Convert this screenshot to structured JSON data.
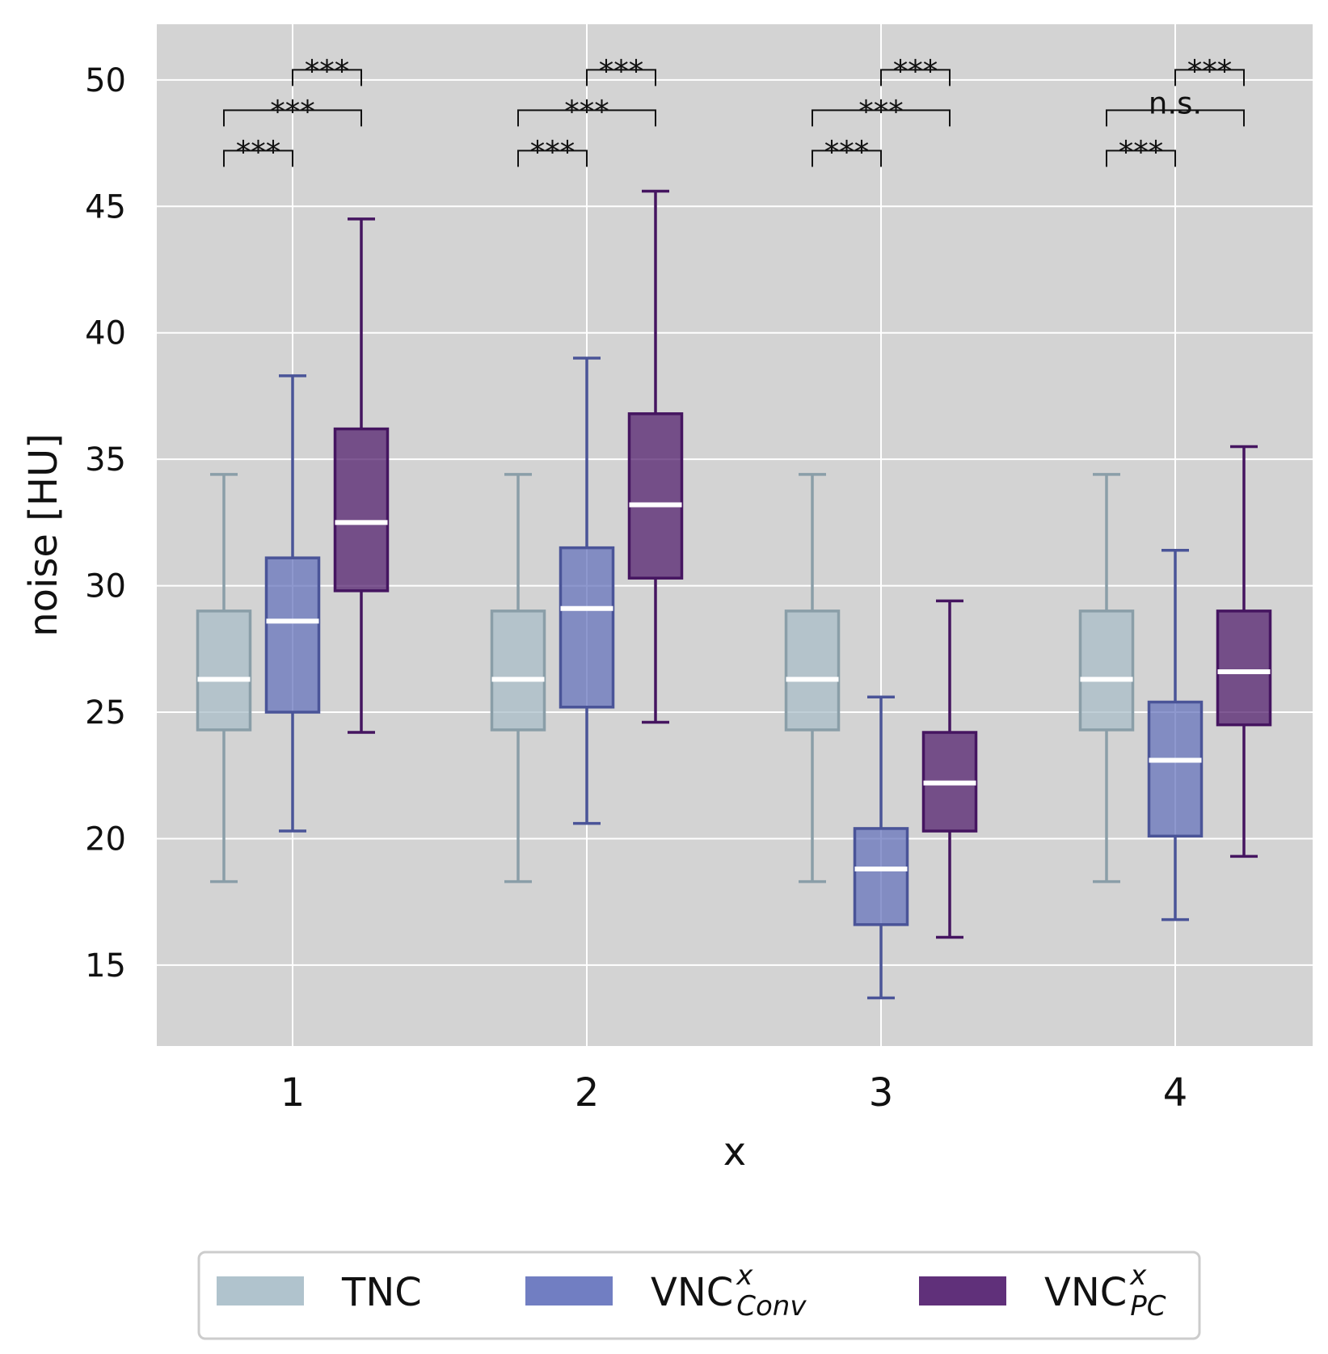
{
  "chart_data": {
    "type": "box",
    "xlabel": "x",
    "ylabel": "noise [HU]",
    "ylim": [
      11.8,
      52.2
    ],
    "yticks": [
      15,
      20,
      25,
      30,
      35,
      40,
      45,
      50
    ],
    "categories": [
      "1",
      "2",
      "3",
      "4"
    ],
    "grid": true,
    "series": [
      {
        "name": "TNC",
        "legend_label": "TNC",
        "legend_sup": "",
        "legend_sub": "",
        "color": "#a7bcc8",
        "edge_color": "#8a9ea8",
        "boxes": [
          {
            "category": "1",
            "whislo": 18.3,
            "q1": 24.3,
            "med": 26.3,
            "q3": 29.0,
            "whishi": 34.4
          },
          {
            "category": "2",
            "whislo": 18.3,
            "q1": 24.3,
            "med": 26.3,
            "q3": 29.0,
            "whishi": 34.4
          },
          {
            "category": "3",
            "whislo": 18.3,
            "q1": 24.3,
            "med": 26.3,
            "q3": 29.0,
            "whishi": 34.4
          },
          {
            "category": "4",
            "whislo": 18.3,
            "q1": 24.3,
            "med": 26.3,
            "q3": 29.0,
            "whishi": 34.4
          }
        ]
      },
      {
        "name": "VNC Conv",
        "legend_label": "VNC",
        "legend_sup": "x",
        "legend_sub": "Conv",
        "color": "#6270bb",
        "edge_color": "#4a5498",
        "boxes": [
          {
            "category": "1",
            "whislo": 20.3,
            "q1": 25.0,
            "med": 28.6,
            "q3": 31.1,
            "whishi": 38.3
          },
          {
            "category": "2",
            "whislo": 20.6,
            "q1": 25.2,
            "med": 29.1,
            "q3": 31.5,
            "whishi": 39.0
          },
          {
            "category": "3",
            "whislo": 13.7,
            "q1": 16.6,
            "med": 18.8,
            "q3": 20.4,
            "whishi": 25.6
          },
          {
            "category": "4",
            "whislo": 16.8,
            "q1": 20.1,
            "med": 23.1,
            "q3": 25.4,
            "whishi": 31.4
          }
        ]
      },
      {
        "name": "VNC PC",
        "legend_label": "VNC",
        "legend_sup": "x",
        "legend_sub": "PC",
        "color": "#4f1a6b",
        "edge_color": "#451560",
        "boxes": [
          {
            "category": "1",
            "whislo": 24.2,
            "q1": 29.8,
            "med": 32.5,
            "q3": 36.2,
            "whishi": 44.5
          },
          {
            "category": "2",
            "whislo": 24.6,
            "q1": 30.3,
            "med": 33.2,
            "q3": 36.8,
            "whishi": 45.6
          },
          {
            "category": "3",
            "whislo": 16.1,
            "q1": 20.3,
            "med": 22.2,
            "q3": 24.2,
            "whishi": 29.4
          },
          {
            "category": "4",
            "whislo": 19.3,
            "q1": 24.5,
            "med": 26.6,
            "q3": 29.0,
            "whishi": 35.5
          }
        ]
      }
    ],
    "significance": [
      {
        "category": "1",
        "from": "TNC",
        "to": "VNC Conv",
        "y": 47.2,
        "label": "***"
      },
      {
        "category": "1",
        "from": "TNC",
        "to": "VNC PC",
        "y": 48.8,
        "label": "***"
      },
      {
        "category": "1",
        "from": "VNC Conv",
        "to": "VNC PC",
        "y": 50.4,
        "label": "***"
      },
      {
        "category": "2",
        "from": "TNC",
        "to": "VNC Conv",
        "y": 47.2,
        "label": "***"
      },
      {
        "category": "2",
        "from": "TNC",
        "to": "VNC PC",
        "y": 48.8,
        "label": "***"
      },
      {
        "category": "2",
        "from": "VNC Conv",
        "to": "VNC PC",
        "y": 50.4,
        "label": "***"
      },
      {
        "category": "3",
        "from": "TNC",
        "to": "VNC Conv",
        "y": 47.2,
        "label": "***"
      },
      {
        "category": "3",
        "from": "TNC",
        "to": "VNC PC",
        "y": 48.8,
        "label": "***"
      },
      {
        "category": "3",
        "from": "VNC Conv",
        "to": "VNC PC",
        "y": 50.4,
        "label": "***"
      },
      {
        "category": "4",
        "from": "TNC",
        "to": "VNC Conv",
        "y": 47.2,
        "label": "***"
      },
      {
        "category": "4",
        "from": "TNC",
        "to": "VNC PC",
        "y": 48.8,
        "label": "n.s."
      },
      {
        "category": "4",
        "from": "VNC Conv",
        "to": "VNC PC",
        "y": 50.4,
        "label": "***"
      }
    ],
    "legend_position": "bottom-center"
  }
}
